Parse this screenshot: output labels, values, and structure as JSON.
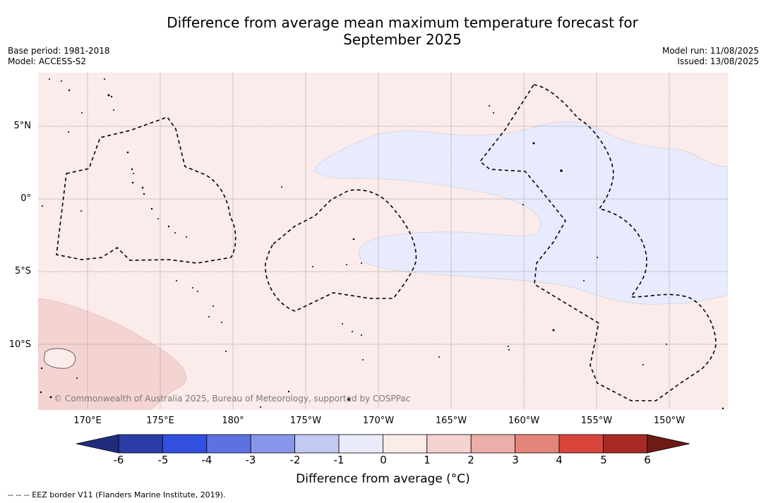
{
  "header": {
    "title_line1": "Difference from average mean maximum temperature forecast for",
    "title_line2": "September 2025",
    "base_period": "Base period: 1981-2018",
    "model": "Model: ACCESS-S2",
    "model_run": "Model run: 11/08/2025",
    "issued": "Issued: 13/08/2025"
  },
  "map": {
    "lat_labels": [
      "5°N",
      "0°",
      "5°S",
      "10°S"
    ],
    "lon_labels": [
      "170°E",
      "175°E",
      "180°",
      "175°W",
      "170°W",
      "165°W",
      "160°W",
      "155°W",
      "150°W"
    ],
    "copyright": "© Commonwealth of Australia 2025, Bureau of Meteorology, supported by COSPPac",
    "colors": {
      "background_anomaly": "#fbebea",
      "warm_anomaly_1_2": "#f4d4d2",
      "cool_anomaly_neg1_0": "#e8ebfb",
      "eez_border": "#000000"
    }
  },
  "colorbar": {
    "label": "Difference from average (°C)",
    "ticks": [
      "-6",
      "-5",
      "-4",
      "-3",
      "-2",
      "-1",
      "0",
      "1",
      "2",
      "3",
      "4",
      "5",
      "6"
    ],
    "colors": [
      "#202d7c",
      "#2b3ca6",
      "#3250e0",
      "#5d72e2",
      "#8997ea",
      "#c2c9f2",
      "#e9ebfb",
      "#fcece9",
      "#f4d3d0",
      "#ebaea8",
      "#e4857c",
      "#d9453b",
      "#a92a24",
      "#6e1a16"
    ]
  },
  "footer": {
    "eez_note": "--  --  -- EEZ border V11 (Flanders Marine Institute, 2019)."
  }
}
